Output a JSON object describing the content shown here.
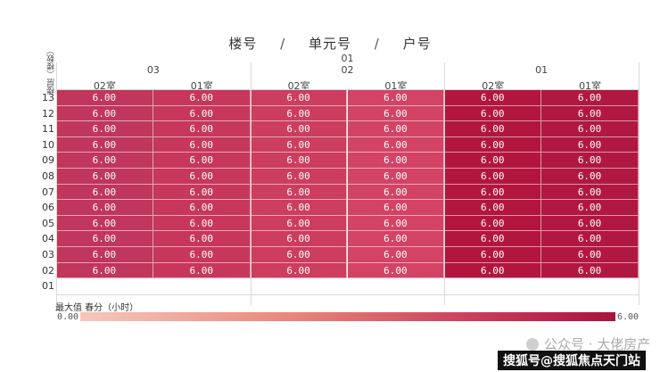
{
  "title": {
    "part1": "楼号",
    "sep": "/",
    "part2": "单元号",
    "part3": "户号"
  },
  "floor_axis_label": "楼层（楼数）",
  "building_label": "01",
  "units": [
    "03",
    "02",
    "01"
  ],
  "rooms": [
    "02室",
    "01室",
    "02室",
    "01室",
    "02室",
    "01室"
  ],
  "floors": [
    "13",
    "12",
    "11",
    "10",
    "09",
    "08",
    "07",
    "06",
    "05",
    "04",
    "03",
    "02",
    "01"
  ],
  "legend": {
    "title": "最大值 春分（小时）",
    "min": "0.00",
    "max": "6.00"
  },
  "watermark": {
    "line1": "公众号 · 大佬房产不迷路",
    "line2": "搜狐号@搜狐焦点天门站"
  },
  "chart_data": {
    "type": "heatmap",
    "title": "楼号 / 单元号 / 户号",
    "x_groups": {
      "building": "01",
      "units": [
        "03",
        "02",
        "01"
      ]
    },
    "x": [
      "03-02室",
      "03-01室",
      "02-02室",
      "02-01室",
      "01-02室",
      "01-01室"
    ],
    "y": [
      "13",
      "12",
      "11",
      "10",
      "09",
      "08",
      "07",
      "06",
      "05",
      "04",
      "03",
      "02",
      "01"
    ],
    "values": [
      [
        "6.00",
        "6.00",
        "6.00",
        "6.00",
        "6.00",
        "6.00"
      ],
      [
        "6.00",
        "6.00",
        "6.00",
        "6.00",
        "6.00",
        "6.00"
      ],
      [
        "6.00",
        "6.00",
        "6.00",
        "6.00",
        "6.00",
        "6.00"
      ],
      [
        "6.00",
        "6.00",
        "6.00",
        "6.00",
        "6.00",
        "6.00"
      ],
      [
        "6.00",
        "6.00",
        "6.00",
        "6.00",
        "6.00",
        "6.00"
      ],
      [
        "6.00",
        "6.00",
        "6.00",
        "6.00",
        "6.00",
        "6.00"
      ],
      [
        "6.00",
        "6.00",
        "6.00",
        "6.00",
        "6.00",
        "6.00"
      ],
      [
        "6.00",
        "6.00",
        "6.00",
        "6.00",
        "6.00",
        "6.00"
      ],
      [
        "6.00",
        "6.00",
        "6.00",
        "6.00",
        "6.00",
        "6.00"
      ],
      [
        "6.00",
        "6.00",
        "6.00",
        "6.00",
        "6.00",
        "6.00"
      ],
      [
        "6.00",
        "6.00",
        "6.00",
        "6.00",
        "6.00",
        "6.00"
      ],
      [
        "6.00",
        "6.00",
        "6.00",
        "6.00",
        "6.00",
        "6.00"
      ],
      [
        null,
        null,
        null,
        null,
        null,
        null
      ]
    ],
    "color_scale": {
      "min": 0.0,
      "max": 6.0,
      "min_color": "#f6c8bd",
      "max_color": "#a9123d"
    },
    "cell_colors": [
      "#c0365c",
      "#c7375c",
      "#cc3d5e",
      "#d34366",
      "#b2163f",
      "#b01842"
    ]
  }
}
